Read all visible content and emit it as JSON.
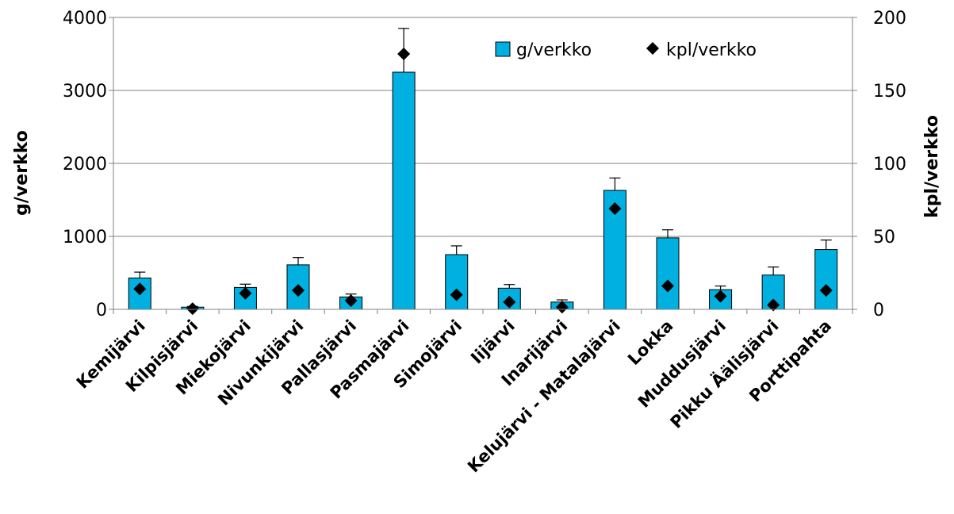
{
  "chart_data": {
    "type": "bar",
    "categories": [
      "Kemijärvi",
      "Kilpisjärvi",
      "Miekojärvi",
      "Nivunkijärvi",
      "Pallasjärvi",
      "Pasmajärvi",
      "Simojärvi",
      "Iijärvi",
      "Inarijärvi",
      "Kelujärvi - Matalajärvi",
      "Lokka",
      "Muddusjärvi",
      "Pikku Äälisjärvi",
      "Porttipahta"
    ],
    "series": [
      {
        "name": "g/verkko",
        "type": "bar",
        "axis": "left",
        "values": [
          430,
          30,
          300,
          610,
          170,
          3250,
          750,
          290,
          100,
          1630,
          980,
          270,
          470,
          820
        ],
        "error": [
          80,
          10,
          45,
          100,
          40,
          600,
          120,
          50,
          30,
          170,
          110,
          50,
          110,
          130
        ]
      },
      {
        "name": "kpl/verkko",
        "type": "scatter",
        "axis": "right",
        "values": [
          14,
          0.5,
          11,
          13,
          6,
          175,
          10,
          5,
          1.5,
          69,
          16,
          9,
          3,
          13
        ]
      }
    ],
    "ylabel": "g/verkko",
    "ylabel_right": "kpl/verkko",
    "ylim": [
      0,
      4000
    ],
    "ylim_right": [
      0,
      200
    ],
    "yticks": [
      "0",
      "1000",
      "2000",
      "3000",
      "4000"
    ],
    "yticks_right": [
      "0",
      "50",
      "100",
      "150",
      "200"
    ],
    "grid": true,
    "legend": "top-right",
    "colors": {
      "bar": "#00B0E0",
      "bar_stroke": "#000000",
      "marker": "#000000",
      "grid": "#808080"
    }
  }
}
